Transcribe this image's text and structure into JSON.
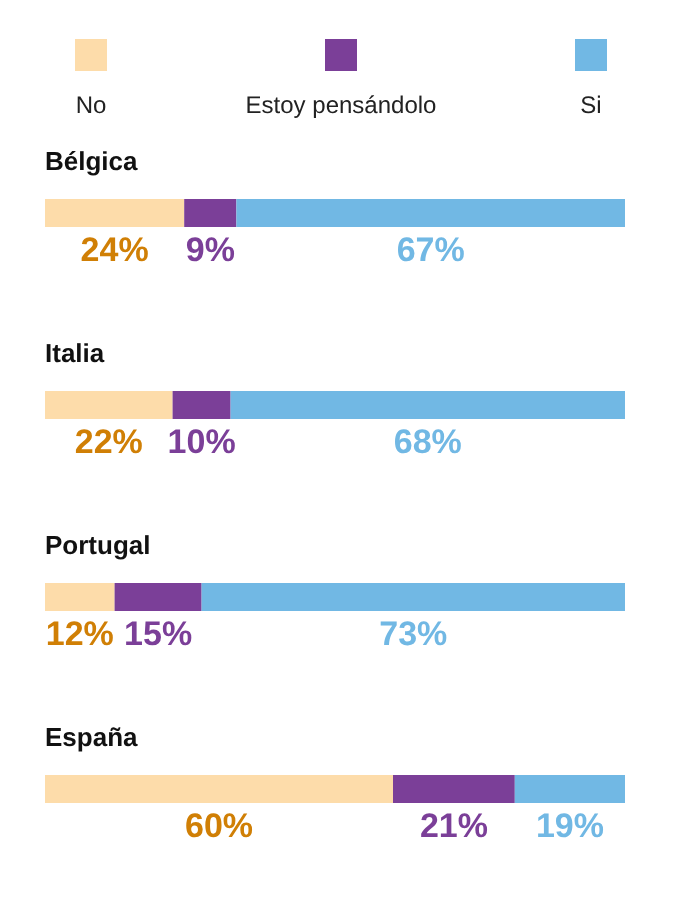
{
  "chart_data": {
    "type": "bar",
    "orientation": "horizontal",
    "stacked": true,
    "legend": "top",
    "categories": [
      "Bélgica",
      "Italia",
      "Portugal",
      "España"
    ],
    "series": [
      {
        "name": "No",
        "color": "#fddcaa",
        "values": [
          24,
          22,
          12,
          60
        ],
        "value_labels": [
          "24%",
          "22%",
          "12%",
          "60%"
        ]
      },
      {
        "name": "Estoy pensándolo",
        "color": "#7b3f98",
        "values": [
          9,
          10,
          15,
          21
        ],
        "value_labels": [
          "9%",
          "10%",
          "15%",
          "21%"
        ]
      },
      {
        "name": "Si",
        "color": "#71b8e4",
        "values": [
          67,
          68,
          73,
          19
        ],
        "value_labels": [
          "67%",
          "68%",
          "73%",
          "19%"
        ]
      }
    ]
  }
}
